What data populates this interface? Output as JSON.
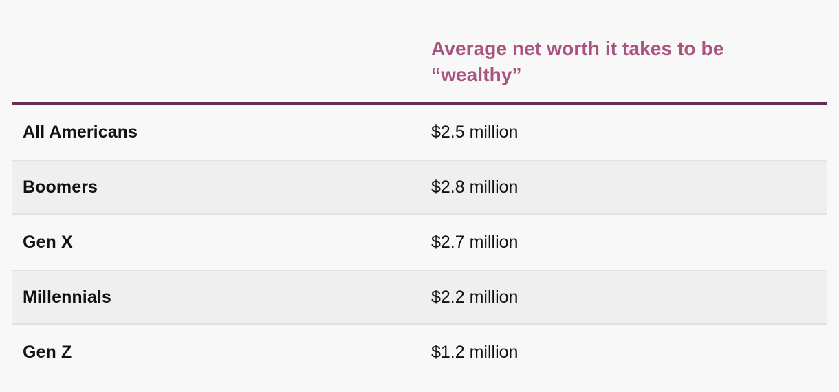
{
  "page": {
    "background_color": "#f9f8f8",
    "accent_color": "#a9537f",
    "rule_color": "#642f52",
    "stripe_color": "#f0efef"
  },
  "table": {
    "header": {
      "category_column_label": "",
      "value_column_label": "Average net worth it takes to be “wealthy”"
    },
    "rows": [
      {
        "label": "All Americans",
        "value": "$2.5 million"
      },
      {
        "label": "Boomers",
        "value": "$2.8 million"
      },
      {
        "label": "Gen X",
        "value": "$2.7 million"
      },
      {
        "label": "Millennials",
        "value": "$2.2 million"
      },
      {
        "label": "Gen Z",
        "value": "$1.2 million"
      }
    ]
  },
  "chart_data": {
    "type": "table",
    "title": "Average net worth it takes to be “wealthy”",
    "categories": [
      "All Americans",
      "Boomers",
      "Gen X",
      "Millennials",
      "Gen Z"
    ],
    "values": [
      2.5,
      2.8,
      2.7,
      2.2,
      1.2
    ],
    "unit": "million USD",
    "value_labels": [
      "$2.5 million",
      "$2.8 million",
      "$2.7 million",
      "$2.2 million",
      "$1.2 million"
    ],
    "layout": {
      "striped_rows": [
        1,
        3
      ],
      "header_text_color": "#a9537f",
      "header_rule_color": "#642f52"
    }
  }
}
